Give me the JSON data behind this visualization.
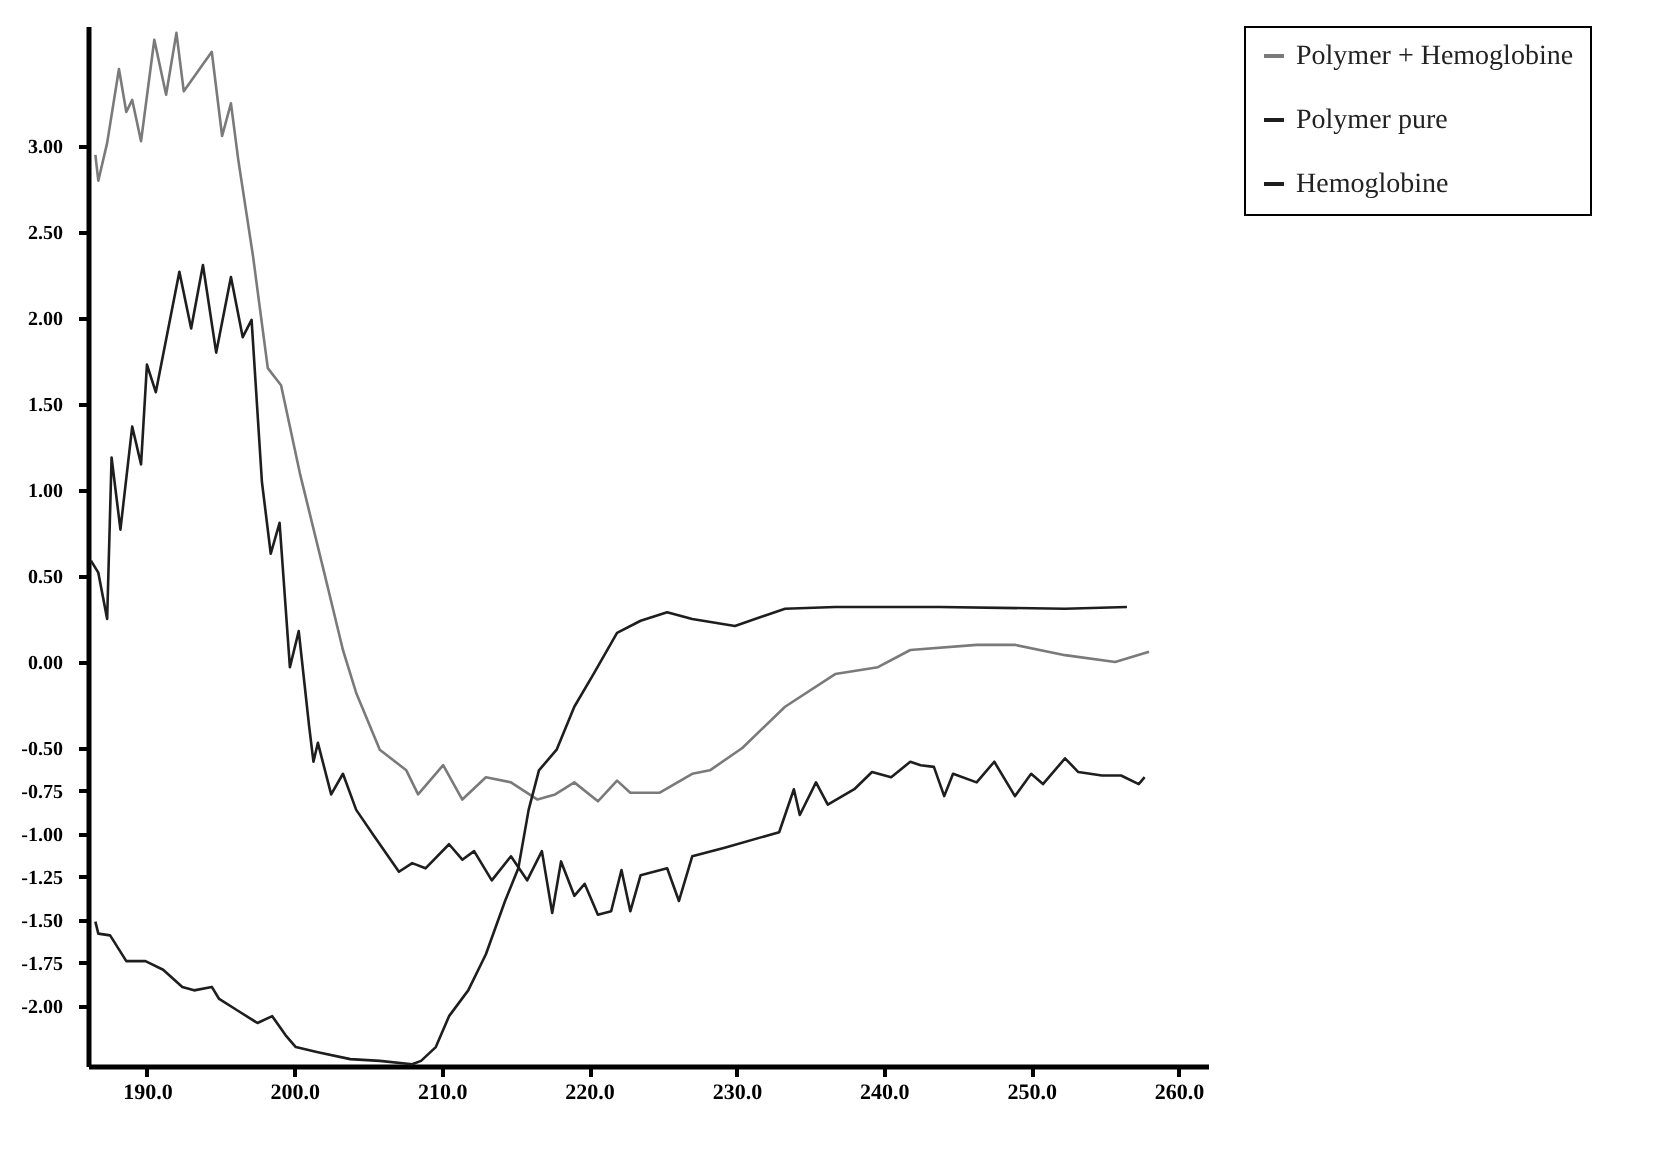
{
  "chart_data": {
    "type": "line",
    "legend": "right",
    "grid": false,
    "marker": "none",
    "line_style": "solid",
    "xlim": [
      186,
      262
    ],
    "ylim": [
      -2.35,
      3.7
    ],
    "xticks": [
      {
        "value": 190,
        "label": "190.0"
      },
      {
        "value": 200,
        "label": "200.0"
      },
      {
        "value": 210,
        "label": "210.0"
      },
      {
        "value": 220,
        "label": "220.0"
      },
      {
        "value": 230,
        "label": "230.0"
      },
      {
        "value": 240,
        "label": "240.0"
      },
      {
        "value": 250,
        "label": "250.0"
      },
      {
        "value": 260,
        "label": "260.0"
      }
    ],
    "yticks": [
      {
        "value": 3,
        "label": "3.00"
      },
      {
        "value": 2.5,
        "label": "2.50"
      },
      {
        "value": 2,
        "label": "2.00"
      },
      {
        "value": 1.5,
        "label": "1.50"
      },
      {
        "value": 1,
        "label": "1.00"
      },
      {
        "value": 0.5,
        "label": "0.50"
      },
      {
        "value": 0,
        "label": "0.00"
      },
      {
        "value": -0.5,
        "label": "-0.50"
      },
      {
        "value": -0.75,
        "label": "-0.75"
      },
      {
        "value": -1,
        "label": "-1.00"
      },
      {
        "value": -1.25,
        "label": "-1.25"
      },
      {
        "value": -1.5,
        "label": "-1.50"
      },
      {
        "value": -1.75,
        "label": "-1.75"
      },
      {
        "value": -2,
        "label": "-2.00"
      }
    ],
    "series": [
      {
        "name": "Polymer + Hemoglobine",
        "color": "#7a7a7a",
        "x": [
          186.5,
          186.7,
          187.3,
          188.1,
          188.6,
          189.0,
          189.6,
          190.5,
          191.3,
          192.0,
          192.5,
          194.4,
          195.1,
          195.7,
          196.2,
          197.2,
          198.2,
          199.1,
          200.4,
          202.0,
          203.3,
          204.2,
          205.8,
          207.6,
          208.4,
          210.1,
          211.4,
          213.0,
          214.7,
          216.5,
          217.7,
          219.0,
          220.6,
          221.9,
          222.8,
          224.8,
          227.0,
          228.2,
          230.4,
          233.3,
          236.7,
          239.6,
          241.8,
          246.3,
          248.9,
          252.3,
          255.7,
          258.0
        ],
        "values": [
          2.95,
          2.8,
          3.02,
          3.45,
          3.2,
          3.27,
          3.03,
          3.62,
          3.3,
          3.66,
          3.32,
          3.55,
          3.06,
          3.25,
          2.92,
          2.36,
          1.71,
          1.61,
          1.09,
          0.53,
          0.07,
          -0.18,
          -0.51,
          -0.63,
          -0.77,
          -0.6,
          -0.8,
          -0.67,
          -0.7,
          -0.8,
          -0.77,
          -0.7,
          -0.81,
          -0.69,
          -0.76,
          -0.76,
          -0.65,
          -0.63,
          -0.5,
          -0.26,
          -0.07,
          -0.03,
          0.07,
          0.1,
          0.1,
          0.04,
          0.0,
          0.06
        ]
      },
      {
        "name": "Polymer pure",
        "color": "#1e1e1e",
        "x": [
          186.5,
          186.7,
          187.5,
          188.6,
          189.9,
          191.1,
          192.4,
          193.2,
          194.4,
          194.9,
          196.2,
          197.5,
          198.5,
          199.4,
          200.1,
          201.6,
          203.8,
          205.8,
          208.0,
          208.6,
          209.6,
          210.5,
          211.8,
          213.0,
          214.3,
          215.2,
          215.9,
          216.6,
          217.8,
          219.0,
          220.3,
          221.9,
          223.5,
          225.3,
          227.0,
          229.9,
          233.3,
          236.7,
          243.8,
          252.3,
          256.5
        ],
        "values": [
          -1.51,
          -1.58,
          -1.59,
          -1.74,
          -1.74,
          -1.79,
          -1.89,
          -1.91,
          -1.89,
          -1.96,
          -2.03,
          -2.1,
          -2.06,
          -2.17,
          -2.24,
          -2.27,
          -2.31,
          -2.32,
          -2.34,
          -2.32,
          -2.24,
          -2.06,
          -1.91,
          -1.7,
          -1.39,
          -1.2,
          -0.86,
          -0.63,
          -0.51,
          -0.26,
          -0.07,
          0.17,
          0.24,
          0.29,
          0.25,
          0.21,
          0.31,
          0.32,
          0.32,
          0.31,
          0.32
        ]
      },
      {
        "name": "Hemoglobine",
        "color": "#1e1e1e",
        "x": [
          186.2,
          186.7,
          187.3,
          187.6,
          188.2,
          189.0,
          189.6,
          190.0,
          190.6,
          192.2,
          193.0,
          193.8,
          194.7,
          195.7,
          196.5,
          197.1,
          197.8,
          198.4,
          199.0,
          199.7,
          200.3,
          201.0,
          201.3,
          201.6,
          202.5,
          203.3,
          204.2,
          205.4,
          207.1,
          208.0,
          208.9,
          210.5,
          211.4,
          212.2,
          213.4,
          214.7,
          215.8,
          216.8,
          217.5,
          218.1,
          219.0,
          219.7,
          220.6,
          221.5,
          222.2,
          222.8,
          223.5,
          224.4,
          225.3,
          226.1,
          227.0,
          229.2,
          232.9,
          233.9,
          234.3,
          235.4,
          236.2,
          238.0,
          239.2,
          240.5,
          241.8,
          242.5,
          243.4,
          244.1,
          244.7,
          246.3,
          247.5,
          248.9,
          250.0,
          250.8,
          252.3,
          253.2,
          254.8,
          256.1,
          257.3,
          257.7
        ],
        "values": [
          0.59,
          0.52,
          0.25,
          1.19,
          0.77,
          1.37,
          1.15,
          1.73,
          1.57,
          2.27,
          1.94,
          2.31,
          1.8,
          2.24,
          1.89,
          1.99,
          1.05,
          0.63,
          0.81,
          -0.03,
          0.18,
          -0.37,
          -0.58,
          -0.47,
          -0.77,
          -0.65,
          -0.86,
          -1.01,
          -1.22,
          -1.17,
          -1.2,
          -1.06,
          -1.15,
          -1.1,
          -1.27,
          -1.13,
          -1.27,
          -1.1,
          -1.46,
          -1.16,
          -1.36,
          -1.29,
          -1.47,
          -1.45,
          -1.21,
          -1.45,
          -1.24,
          -1.22,
          -1.2,
          -1.39,
          -1.13,
          -1.08,
          -0.99,
          -0.74,
          -0.89,
          -0.7,
          -0.83,
          -0.74,
          -0.64,
          -0.67,
          -0.58,
          -0.6,
          -0.61,
          -0.78,
          -0.65,
          -0.7,
          -0.58,
          -0.78,
          -0.65,
          -0.71,
          -0.56,
          -0.64,
          -0.66,
          -0.66,
          -0.71,
          -0.67
        ]
      }
    ]
  }
}
